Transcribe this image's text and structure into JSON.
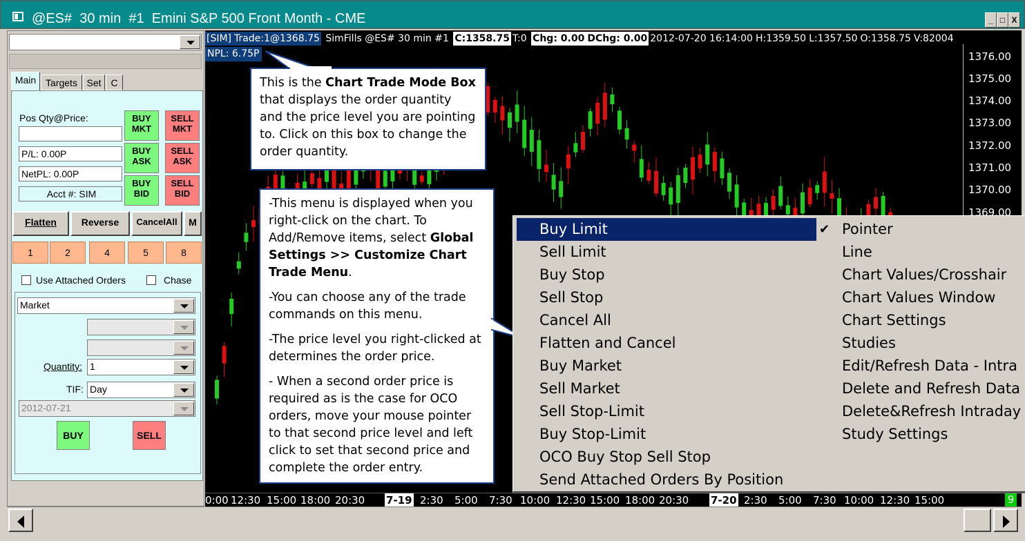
{
  "window": {
    "title": "@ES#  30 min  #1  Emini S&P 500 Front Month - CME",
    "min_label": "_",
    "max_label": "□",
    "close_label": "X"
  },
  "left": {
    "symbol_combo": "",
    "tabs": [
      "Main",
      "Targets",
      "Set",
      "C"
    ],
    "pos_label": "Pos Qty@Price:",
    "pos_value": "",
    "pl": "P/L: 0.00P",
    "netpl": "NetPL: 0.00P",
    "acct": "Acct #: SIM",
    "buy_mkt": "BUY MKT",
    "sell_mkt": "SELL MKT",
    "buy_ask": "BUY ASK",
    "sell_ask": "SELL ASK",
    "buy_bid": "BUY BID",
    "sell_bid": "SELL BID",
    "flatten": "Flatten",
    "reverse": "Reverse",
    "cancel_all": "CancelAll",
    "more": "M",
    "quantities": [
      "1",
      "2",
      "4",
      "5",
      "8"
    ],
    "use_attached": "Use Attached Orders",
    "chase": "Chase",
    "order_type": "Market",
    "quantity_label": "Quantity:",
    "quantity_value": "1",
    "tif_label": "TIF:",
    "tif_value": "Day",
    "date_value": "2012-07-21",
    "buy": "BUY",
    "sell": "SELL"
  },
  "chart": {
    "header": {
      "sim": "[SIM]",
      "trade": "Trade:1@1368.75",
      "fills": "SimFills @ES#  30 min  #1",
      "close": "C:1358.75",
      "t": "T:0",
      "chg": "Chg: 0.00",
      "dchg": "DChg: 0.00",
      "datetime": "2012-07-20 16:14:00",
      "high": "H:1359.50",
      "low": "L:1357.50",
      "open": "O:1358.75",
      "volume": "V:82004"
    },
    "npl": "NPL: 6.75P",
    "price_labels": [
      "1376.00",
      "1375.00",
      "1374.00",
      "1373.00",
      "1372.00",
      "1371.00",
      "1370.00",
      "1369.00"
    ],
    "time_labels": [
      "0:00",
      "12:30",
      "15:00",
      "18:00",
      "20:30",
      "7-19",
      "2:30",
      "5:00",
      "7:30",
      "10:00",
      "12:30",
      "15:00",
      "18:00",
      "20:30",
      "7-20",
      "2:30",
      "5:00",
      "7:30",
      "10:00",
      "12:30",
      "15:00"
    ],
    "green_badge": "9",
    "colors": {
      "up": "#22cc22",
      "down": "#dd1111",
      "background": "#000000"
    }
  },
  "callout1": {
    "pre": "This is the ",
    "bold": "Chart Trade Mode Box",
    "post": " that displays the order quantity and the price level you are pointing to. Click on this box to change the order quantity."
  },
  "callout2": {
    "p1_pre": "-This menu is displayed when you right-click on the chart.  To Add/Remove items, select ",
    "p1_bold": "Global Settings >> Customize Chart Trade Menu",
    "p1_post": ".",
    "p2": "-You can choose any of the trade commands on this menu.",
    "p3": "-The price level you right-clicked at determines the order price.",
    "p4": "- When a second order price is required as is the case for OCO orders, move your mouse pointer to that second price level and left click to set that second price and complete the order entry."
  },
  "menu": {
    "left_items": [
      "Buy Limit",
      "Sell Limit",
      "Buy Stop",
      "Sell Stop",
      "Cancel All",
      "Flatten and Cancel",
      "Buy Market",
      "Sell Market",
      "Sell Stop-Limit",
      "Buy Stop-Limit",
      "OCO Buy Stop Sell Stop",
      "Send Attached Orders By Position"
    ],
    "right_items": [
      "Pointer",
      "Line",
      "Chart Values/Crosshair",
      "Chart Values Window",
      "Chart Settings",
      "Studies",
      "Edit/Refresh Data - Intra",
      "Delete and Refresh Data",
      "Delete&Refresh Intraday",
      "Study Settings"
    ],
    "check_mark": "✔"
  }
}
